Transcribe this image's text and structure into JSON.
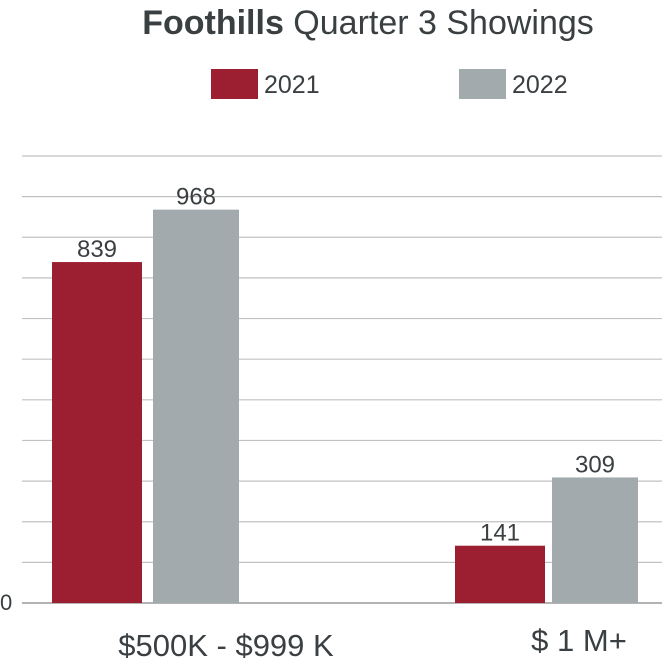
{
  "chart_data": {
    "type": "bar",
    "title_bold": "Foothills",
    "title_rest": " Quarter 3 Showings",
    "categories": [
      "$500K - $999 K",
      "$ 1 M+"
    ],
    "series": [
      {
        "name": "2021",
        "values": [
          839,
          141
        ],
        "color": "#9b1f30"
      },
      {
        "name": "2022",
        "values": [
          968,
          309
        ],
        "color": "#a2aaad"
      }
    ],
    "y_zero_label": "0",
    "ylim": [
      0,
      1100
    ],
    "grid": true,
    "legend_position": "top"
  }
}
